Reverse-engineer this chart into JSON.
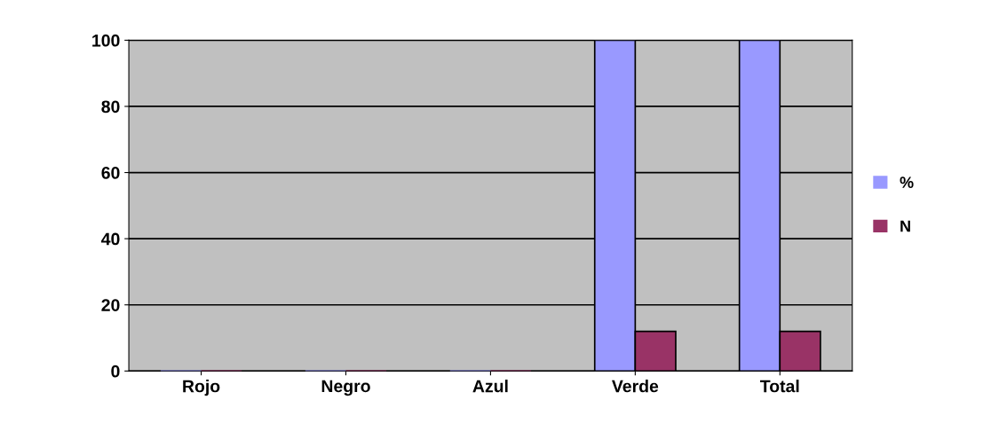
{
  "chart_data": {
    "type": "bar",
    "categories": [
      "Rojo",
      "Negro",
      "Azul",
      "Verde",
      "Total"
    ],
    "series": [
      {
        "name": "%",
        "color": "#9999ff",
        "values": [
          0,
          0,
          0,
          100,
          100
        ]
      },
      {
        "name": "N",
        "color": "#993366",
        "values": [
          0,
          0,
          0,
          12,
          12
        ]
      }
    ],
    "ylim": [
      0,
      100
    ],
    "yticks": [
      0,
      20,
      40,
      60,
      80,
      100
    ],
    "grid": "y",
    "legend": "right"
  }
}
